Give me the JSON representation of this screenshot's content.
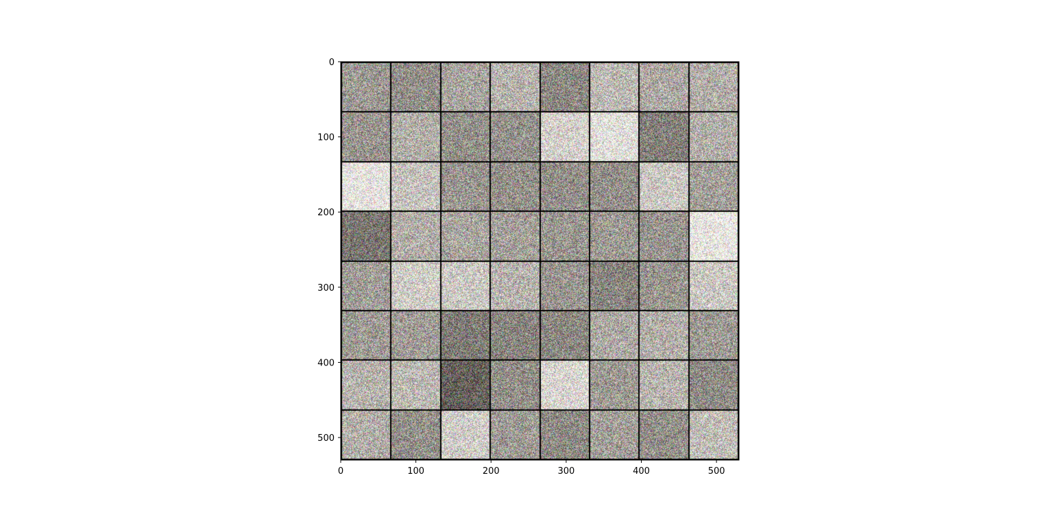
{
  "chart_data": {
    "type": "heatmap",
    "description_kind": "image-grid",
    "grid_rows": 8,
    "grid_cols": 8,
    "image_extent": {
      "x": [
        0,
        530
      ],
      "y": [
        0,
        530
      ]
    },
    "xlim": [
      0,
      530
    ],
    "ylim": [
      530,
      0
    ],
    "x_ticks": [
      0,
      100,
      200,
      300,
      400,
      500
    ],
    "y_ticks": [
      0,
      100,
      200,
      300,
      400,
      500
    ],
    "x_tick_labels": [
      "0",
      "100",
      "200",
      "300",
      "400",
      "500"
    ],
    "y_tick_labels": [
      "0",
      "100",
      "200",
      "300",
      "400",
      "500"
    ],
    "cell_brightness": [
      [
        0.62,
        0.58,
        0.66,
        0.72,
        0.55,
        0.74,
        0.68,
        0.7
      ],
      [
        0.6,
        0.7,
        0.58,
        0.59,
        0.84,
        0.9,
        0.52,
        0.7
      ],
      [
        0.92,
        0.78,
        0.6,
        0.58,
        0.58,
        0.58,
        0.8,
        0.64
      ],
      [
        0.48,
        0.7,
        0.66,
        0.64,
        0.61,
        0.62,
        0.6,
        0.93
      ],
      [
        0.63,
        0.82,
        0.8,
        0.72,
        0.6,
        0.54,
        0.6,
        0.8
      ],
      [
        0.62,
        0.63,
        0.5,
        0.54,
        0.55,
        0.68,
        0.7,
        0.62
      ],
      [
        0.72,
        0.74,
        0.4,
        0.58,
        0.86,
        0.62,
        0.72,
        0.56
      ],
      [
        0.7,
        0.58,
        0.82,
        0.62,
        0.56,
        0.64,
        0.58,
        0.76
      ]
    ],
    "title": "",
    "xlabel": "",
    "ylabel": ""
  },
  "colors": {
    "background": "#ffffff",
    "gridline": "#000000",
    "tile_base": "#a9a496"
  }
}
